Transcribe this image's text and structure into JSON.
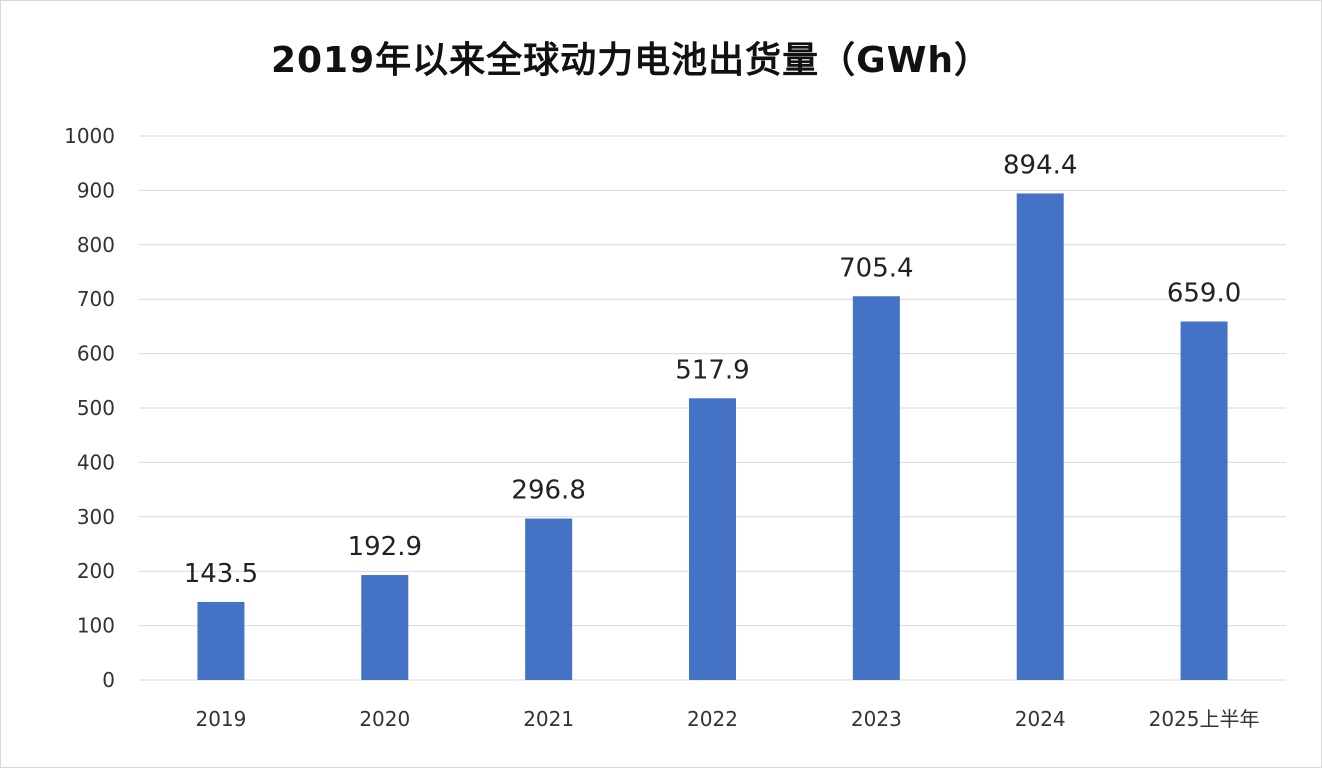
{
  "chart_data": {
    "type": "bar",
    "title": "2019年以来全球动力电池出货量（GWh）",
    "categories": [
      "2019",
      "2020",
      "2021",
      "2022",
      "2023",
      "2024",
      "2025上半年"
    ],
    "values": [
      143.5,
      192.9,
      296.8,
      517.9,
      705.4,
      894.4,
      659.0
    ],
    "value_labels": [
      "143.5",
      "192.9",
      "296.8",
      "517.9",
      "705.4",
      "894.4",
      "659.0"
    ],
    "ylim": [
      0,
      1000
    ],
    "yticks": [
      "0",
      "100",
      "200",
      "300",
      "400",
      "500",
      "600",
      "700",
      "800",
      "900",
      "1000"
    ],
    "grid": true,
    "legend": "none",
    "bar_color": "#4472C4",
    "grid_color": "#d9d9d9"
  }
}
